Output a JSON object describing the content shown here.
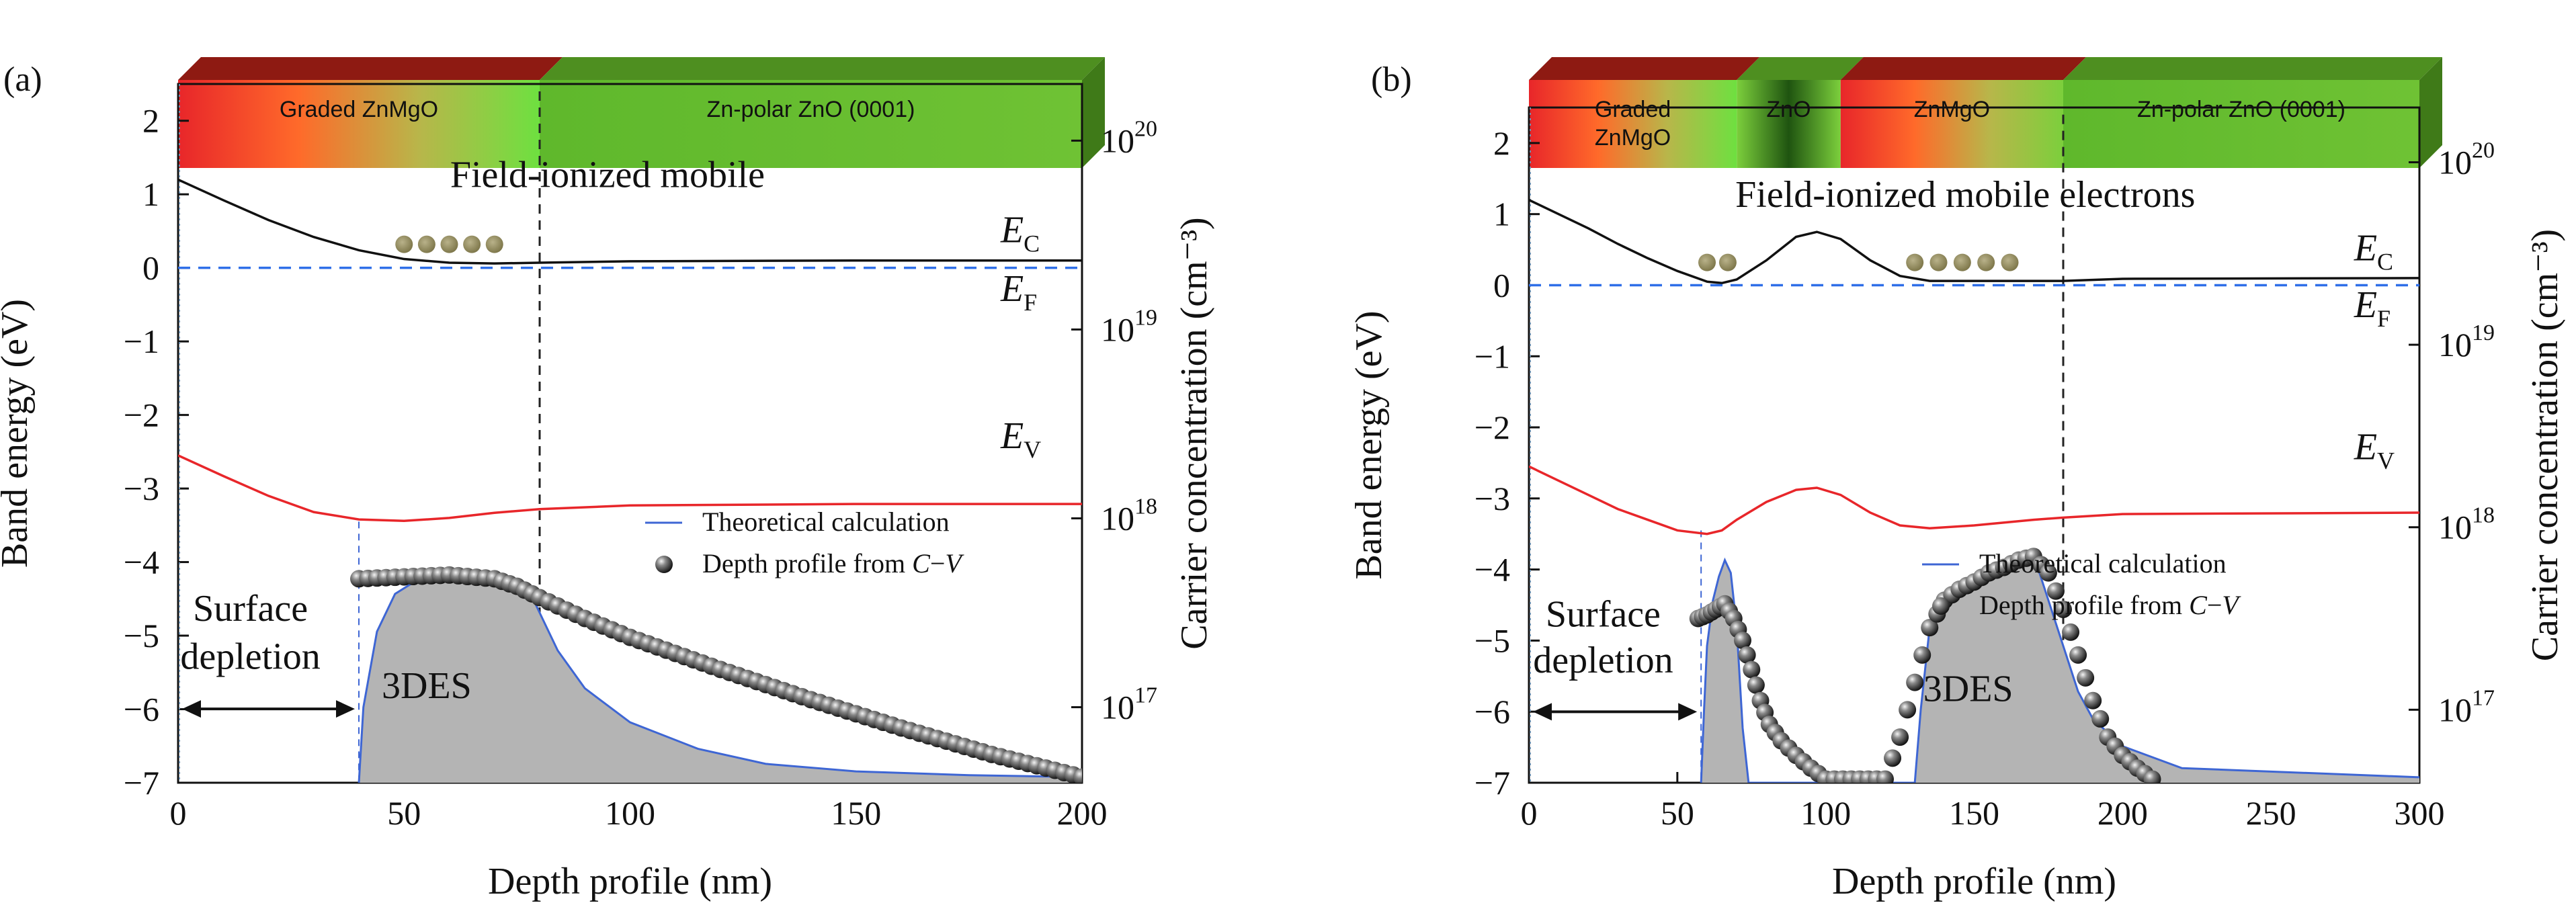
{
  "chart_data": [
    {
      "type": "line",
      "panel_label": "(a)",
      "xlabel": "Depth profile (nm)",
      "ylabel_left": "Band energy (eV)",
      "ylabel_right": "Carrier concentration (cm⁻³)",
      "xlim": [
        0,
        200
      ],
      "ylim_left": [
        -7,
        2.5
      ],
      "ylim_right_log10": [
        16.6,
        20.3
      ],
      "x_ticks": [
        "0",
        "50",
        "100",
        "150",
        "200"
      ],
      "y_ticks_left": [
        "2",
        "1",
        "0",
        "−1",
        "−2",
        "−3",
        "−4",
        "−5",
        "−6",
        "−7"
      ],
      "y_ticks_right": [
        {
          "base": "10",
          "exp": "20",
          "log10": 20
        },
        {
          "base": "10",
          "exp": "19",
          "log10": 19
        },
        {
          "base": "10",
          "exp": "18",
          "log10": 18
        },
        {
          "base": "10",
          "exp": "17",
          "log10": 17
        }
      ],
      "layers": [
        {
          "name": "Graded ZnMgO",
          "x_range": [
            0,
            80
          ],
          "colors": [
            "#e8262a",
            "#ff6a2a",
            "#b8b64a",
            "#6ee040"
          ]
        },
        {
          "name": "Zn-polar ZnO (0001)",
          "x_range": [
            80,
            200
          ],
          "colors": [
            "#5fb82c",
            "#6fc234"
          ]
        }
      ],
      "series": [
        {
          "name": "E",
          "subscript": "C",
          "color": "#111111",
          "label_at": [
            182,
            0.35
          ],
          "x": [
            0,
            10,
            20,
            30,
            40,
            50,
            60,
            70,
            80,
            100,
            150,
            200
          ],
          "y": [
            1.2,
            0.92,
            0.65,
            0.42,
            0.24,
            0.12,
            0.07,
            0.06,
            0.07,
            0.09,
            0.1,
            0.1
          ]
        },
        {
          "name": "E",
          "subscript": "F",
          "color": "#2f6fe8",
          "dashed": true,
          "label_at": [
            182,
            -0.45
          ],
          "x": [
            0,
            200
          ],
          "y": [
            0.0,
            0.0
          ]
        },
        {
          "name": "E",
          "subscript": "V",
          "color": "#e8262a",
          "label_at": [
            182,
            -2.45
          ],
          "x": [
            0,
            10,
            20,
            30,
            40,
            50,
            60,
            70,
            80,
            100,
            150,
            200
          ],
          "y": [
            -2.55,
            -2.83,
            -3.1,
            -3.32,
            -3.42,
            -3.44,
            -3.4,
            -3.33,
            -3.28,
            -3.23,
            -3.21,
            -3.21
          ]
        },
        {
          "name": "Theoretical calculation",
          "color": "#3e66d4",
          "fill": "#b4b4b4",
          "axis": "right",
          "x": [
            40,
            41,
            44,
            48,
            52,
            58,
            65,
            72,
            78,
            80,
            84,
            90,
            100,
            115,
            130,
            150,
            175,
            200
          ],
          "log10": [
            16.6,
            17.0,
            17.4,
            17.6,
            17.66,
            17.68,
            17.68,
            17.66,
            17.6,
            17.5,
            17.3,
            17.1,
            16.92,
            16.78,
            16.7,
            16.66,
            16.64,
            16.63
          ]
        },
        {
          "name": "Depth profile from C−V",
          "marker": "sphere",
          "axis": "right",
          "x": [
            40,
            50,
            60,
            70,
            75,
            80,
            90,
            100,
            120,
            140,
            160,
            180,
            200
          ],
          "log10": [
            17.68,
            17.69,
            17.7,
            17.68,
            17.64,
            17.58,
            17.47,
            17.37,
            17.2,
            17.04,
            16.89,
            16.75,
            16.63
          ]
        }
      ],
      "annotations": [
        {
          "text": "Field-ionized mobile",
          "at": [
            95,
            1.1
          ]
        },
        {
          "text": "3DES",
          "at": [
            55,
            -5.85
          ]
        },
        {
          "text": "Surface",
          "at": [
            16,
            -4.8
          ]
        },
        {
          "text": "depletion",
          "at": [
            16,
            -5.45
          ]
        }
      ],
      "mobile_electrons_x": [
        50,
        55,
        60,
        65,
        70
      ],
      "mobile_electrons_y": 0.32,
      "depletion_arrow_x": [
        0,
        40
      ],
      "dashed_guides_x": [
        40,
        80
      ],
      "legend": {
        "placement": "right, middle",
        "items": [
          "Theoretical calculation",
          "Depth profile from ",
          "C",
          "−",
          "V"
        ]
      }
    },
    {
      "type": "line",
      "panel_label": "(b)",
      "xlabel": "Depth profile (nm)",
      "ylabel_left": "Band energy (eV)",
      "ylabel_right": "Carrier concentration (cm⁻³)",
      "xlim": [
        0,
        300
      ],
      "ylim_left": [
        -7,
        2.5
      ],
      "ylim_right_log10": [
        16.6,
        20.3
      ],
      "x_ticks": [
        "0",
        "50",
        "100",
        "150",
        "200",
        "250",
        "300"
      ],
      "y_ticks_left": [
        "2",
        "1",
        "0",
        "−1",
        "−2",
        "−3",
        "−4",
        "−5",
        "−6",
        "−7"
      ],
      "y_ticks_right": [
        {
          "base": "10",
          "exp": "20",
          "log10": 20
        },
        {
          "base": "10",
          "exp": "19",
          "log10": 19
        },
        {
          "base": "10",
          "exp": "18",
          "log10": 18
        },
        {
          "base": "10",
          "exp": "17",
          "log10": 17
        }
      ],
      "layers": [
        {
          "name": "Graded\nZnMgO",
          "x_range": [
            0,
            70
          ],
          "colors": [
            "#e8262a",
            "#ff6a2a",
            "#b8b64a",
            "#6ee040"
          ]
        },
        {
          "name": "ZnO",
          "x_range": [
            70,
            105
          ],
          "colors": [
            "#7ccf3c",
            "#1f5410",
            "#7ccf3c"
          ]
        },
        {
          "name": "ZnMgO",
          "x_range": [
            105,
            180
          ],
          "colors": [
            "#e8262a",
            "#ff6a2a",
            "#b8b64a",
            "#7ccf3c"
          ]
        },
        {
          "name": "Zn-polar ZnO (0001)",
          "x_range": [
            180,
            300
          ],
          "colors": [
            "#5fb82c",
            "#6fc234"
          ]
        }
      ],
      "series": [
        {
          "name": "E",
          "subscript": "C",
          "color": "#111111",
          "label_at": [
            278,
            0.35
          ],
          "x": [
            0,
            10,
            20,
            30,
            40,
            50,
            60,
            65,
            70,
            80,
            90,
            97,
            105,
            115,
            125,
            135,
            150,
            170,
            180,
            200,
            300
          ],
          "y": [
            1.2,
            1.0,
            0.8,
            0.58,
            0.38,
            0.2,
            0.05,
            0.03,
            0.08,
            0.35,
            0.68,
            0.75,
            0.65,
            0.35,
            0.13,
            0.06,
            0.06,
            0.06,
            0.06,
            0.09,
            0.1
          ]
        },
        {
          "name": "E",
          "subscript": "F",
          "color": "#2f6fe8",
          "dashed": true,
          "label_at": [
            278,
            -0.45
          ],
          "x": [
            0,
            300
          ],
          "y": [
            0.0,
            0.0
          ]
        },
        {
          "name": "E",
          "subscript": "V",
          "color": "#e8262a",
          "label_at": [
            278,
            -2.45
          ],
          "x": [
            0,
            10,
            20,
            30,
            40,
            50,
            60,
            65,
            70,
            80,
            90,
            97,
            105,
            115,
            125,
            135,
            150,
            170,
            180,
            200,
            300
          ],
          "y": [
            -2.55,
            -2.75,
            -2.95,
            -3.15,
            -3.3,
            -3.45,
            -3.5,
            -3.45,
            -3.3,
            -3.05,
            -2.88,
            -2.85,
            -2.95,
            -3.2,
            -3.38,
            -3.42,
            -3.38,
            -3.3,
            -3.27,
            -3.22,
            -3.2
          ]
        },
        {
          "name": "Theoretical calculation",
          "color": "#3e66d4",
          "fill": "#b4b4b4",
          "axis": "right",
          "x": [
            58,
            59,
            60,
            62,
            64,
            66,
            68,
            70,
            72,
            74,
            130,
            132,
            135,
            140,
            150,
            160,
            168,
            172,
            176,
            180,
            185,
            190,
            200,
            220,
            300
          ],
          "log10": [
            16.6,
            17.0,
            17.35,
            17.6,
            17.73,
            17.82,
            17.75,
            17.45,
            16.9,
            16.6,
            16.6,
            17.0,
            17.45,
            17.6,
            17.7,
            17.78,
            17.82,
            17.75,
            17.55,
            17.35,
            17.1,
            16.95,
            16.8,
            16.68,
            16.63
          ]
        },
        {
          "name": "Depth profile from C−V",
          "marker": "sphere",
          "axis": "right",
          "x": [
            57,
            60,
            63,
            66,
            69,
            72,
            75,
            78,
            81,
            85,
            90,
            95,
            100,
            120,
            125,
            130,
            135,
            140,
            145,
            150,
            155,
            160,
            165,
            170,
            175,
            180,
            185,
            190,
            195,
            200,
            205,
            210
          ],
          "log10": [
            17.5,
            17.52,
            17.55,
            17.58,
            17.5,
            17.38,
            17.22,
            17.05,
            16.92,
            16.83,
            16.75,
            16.68,
            16.62,
            16.62,
            16.85,
            17.15,
            17.45,
            17.6,
            17.66,
            17.7,
            17.75,
            17.78,
            17.82,
            17.84,
            17.75,
            17.55,
            17.3,
            17.05,
            16.85,
            16.75,
            16.68,
            16.62
          ]
        }
      ],
      "annotations": [
        {
          "text": "Field-ionized mobile electrons",
          "at": [
            147,
            1.1
          ]
        },
        {
          "text": "3DES",
          "at": [
            148,
            -5.85
          ]
        },
        {
          "text": "Surface",
          "at": [
            25,
            -4.8
          ]
        },
        {
          "text": "depletion",
          "at": [
            25,
            -5.45
          ]
        }
      ],
      "mobile_electrons_x": [
        60,
        67,
        130,
        138,
        146,
        154,
        162
      ],
      "mobile_electrons_y": 0.32,
      "depletion_arrow_x": [
        0,
        58
      ],
      "dashed_guides_x": [
        58,
        180
      ],
      "legend": {
        "placement": "right, middle",
        "items": [
          "Theoretical calculation",
          "Depth profile from ",
          "C",
          "−",
          "V"
        ]
      }
    }
  ]
}
